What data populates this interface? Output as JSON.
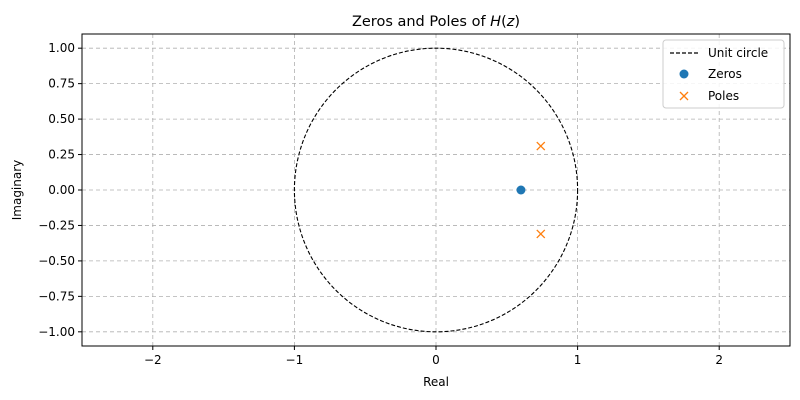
{
  "chart_data": {
    "type": "scatter",
    "title": "Zeros and Poles of H(z)",
    "title_parts": {
      "prefix": "Zeros and Poles of ",
      "math": "H",
      "paren_open": "(",
      "math_var": "z",
      "paren_close": ")"
    },
    "xlabel": "Real",
    "ylabel": "Imaginary",
    "xlim": [
      -2.5,
      2.5
    ],
    "ylim": [
      -1.1,
      1.1
    ],
    "xticks": [
      -2,
      -1,
      0,
      1,
      2
    ],
    "xtick_labels": [
      "−2",
      "−1",
      "0",
      "1",
      "2"
    ],
    "yticks": [
      1.0,
      0.75,
      0.5,
      0.25,
      0.0,
      -0.25,
      -0.5,
      -0.75,
      -1.0
    ],
    "ytick_labels": [
      "1.00",
      "0.75",
      "0.50",
      "0.25",
      "0.00",
      "−0.25",
      "−0.50",
      "−0.75",
      "−1.00"
    ],
    "grid": true,
    "legend_position": "top-right",
    "unit_circle": {
      "name": "Unit circle",
      "radius": 1,
      "color": "#000000",
      "style": "dashed"
    },
    "series": [
      {
        "name": "Zeros",
        "marker": "circle",
        "color": "#1f77b4",
        "points": [
          [
            0.6,
            0.0
          ]
        ]
      },
      {
        "name": "Poles",
        "marker": "x",
        "color": "#ff7f0e",
        "points": [
          [
            0.74,
            0.31
          ],
          [
            0.74,
            -0.31
          ]
        ]
      }
    ]
  }
}
